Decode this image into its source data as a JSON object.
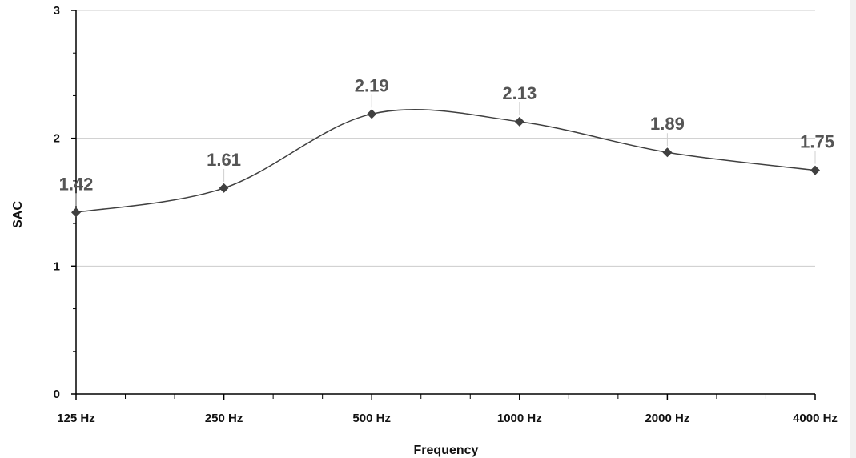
{
  "chart_data": {
    "type": "line",
    "xlabel": "Frequency",
    "ylabel": "SAC",
    "categories": [
      "125 Hz",
      "250 Hz",
      "500 Hz",
      "1000 Hz",
      "2000 Hz",
      "4000 Hz"
    ],
    "series": [
      {
        "values": [
          1.42,
          1.61,
          2.19,
          2.13,
          1.89,
          1.75
        ]
      }
    ],
    "data_labels": [
      "1.42",
      "1.61",
      "2.19",
      "2.13",
      "1.89",
      "1.75"
    ],
    "y_ticks": [
      "0",
      "1",
      "2",
      "3"
    ],
    "ylim": [
      0,
      3
    ],
    "grid": true,
    "smooth": true,
    "marker": "diamond",
    "line_color": "#404040",
    "grid_color": "#cccccc"
  }
}
